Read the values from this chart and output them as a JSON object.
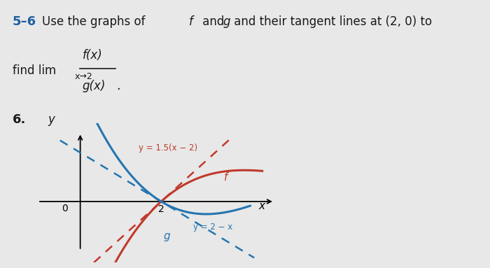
{
  "bg_color": "#e8e8e8",
  "f_color": "#c0392b",
  "g_color": "#2475b0",
  "tangent_f_color": "#c0392b",
  "tangent_g_color": "#2475b0",
  "text_color": "#1a1a1a",
  "blue_label_color": "#2060a0",
  "xlim": [
    -1.5,
    4.8
  ],
  "ylim": [
    -2.5,
    3.2
  ],
  "tangent_f_label": "y = 1.5(x − 2)",
  "tangent_g_label": "y = 2 − x"
}
